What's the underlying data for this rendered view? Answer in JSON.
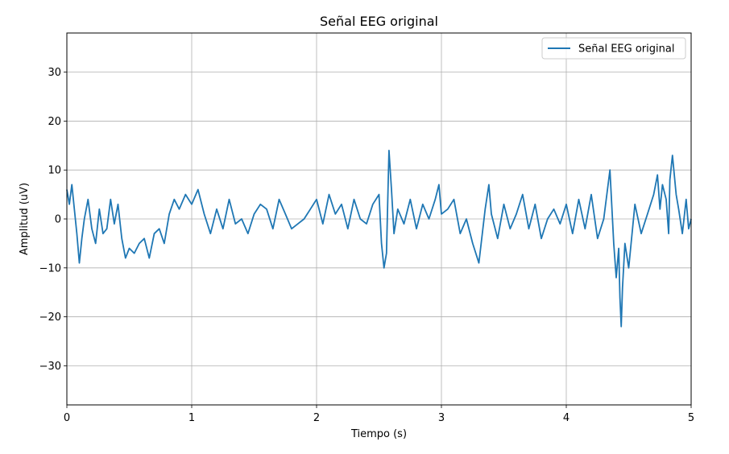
{
  "chart_data": {
    "type": "line",
    "title": "Señal EEG original",
    "xlabel": "Tiempo (s)",
    "ylabel": "Amplitud (uV)",
    "xlim": [
      0,
      5
    ],
    "ylim": [
      -38,
      38
    ],
    "xticks": [
      0,
      1,
      2,
      3,
      4,
      5
    ],
    "xtick_labels": [
      "0",
      "1",
      "2",
      "3",
      "4",
      "5"
    ],
    "yticks": [
      -30,
      -20,
      -10,
      0,
      10,
      20,
      30
    ],
    "ytick_labels": [
      "−30",
      "−20",
      "−10",
      "0",
      "10",
      "20",
      "30"
    ],
    "grid": true,
    "legend_position": "top-right",
    "series": [
      {
        "name": "Señal EEG original",
        "color": "#1f77b4",
        "x": [
          0.0,
          0.02,
          0.04,
          0.06,
          0.08,
          0.1,
          0.12,
          0.14,
          0.17,
          0.2,
          0.23,
          0.26,
          0.29,
          0.32,
          0.35,
          0.38,
          0.41,
          0.44,
          0.47,
          0.5,
          0.54,
          0.58,
          0.62,
          0.66,
          0.7,
          0.74,
          0.78,
          0.82,
          0.86,
          0.9,
          0.95,
          1.0,
          1.05,
          1.1,
          1.15,
          1.2,
          1.25,
          1.3,
          1.35,
          1.4,
          1.45,
          1.5,
          1.55,
          1.6,
          1.65,
          1.7,
          1.75,
          1.8,
          1.85,
          1.9,
          1.95,
          2.0,
          2.05,
          2.1,
          2.15,
          2.2,
          2.25,
          2.3,
          2.35,
          2.4,
          2.45,
          2.5,
          2.52,
          2.54,
          2.56,
          2.57,
          2.58,
          2.6,
          2.62,
          2.65,
          2.7,
          2.75,
          2.8,
          2.85,
          2.9,
          2.95,
          2.98,
          3.0,
          3.05,
          3.1,
          3.15,
          3.2,
          3.25,
          3.3,
          3.35,
          3.38,
          3.4,
          3.45,
          3.5,
          3.55,
          3.6,
          3.65,
          3.7,
          3.75,
          3.8,
          3.85,
          3.9,
          3.95,
          4.0,
          4.05,
          4.1,
          4.15,
          4.2,
          4.25,
          4.3,
          4.35,
          4.38,
          4.4,
          4.42,
          4.43,
          4.44,
          4.45,
          4.47,
          4.5,
          4.55,
          4.6,
          4.65,
          4.7,
          4.73,
          4.75,
          4.77,
          4.8,
          4.82,
          4.83,
          4.85,
          4.88,
          4.9,
          4.93,
          4.96,
          4.98,
          5.0
        ],
        "y": [
          6,
          3,
          7,
          2,
          -3,
          -9,
          -4,
          0,
          4,
          -2,
          -5,
          2,
          -3,
          -2,
          4,
          -1,
          3,
          -4,
          -8,
          -6,
          -7,
          -5,
          -4,
          -8,
          -3,
          -2,
          -5,
          1,
          4,
          2,
          5,
          3,
          6,
          1,
          -3,
          2,
          -2,
          4,
          -1,
          0,
          -3,
          1,
          3,
          2,
          -2,
          4,
          1,
          -2,
          -1,
          0,
          2,
          4,
          -1,
          5,
          1,
          3,
          -2,
          4,
          0,
          -1,
          3,
          5,
          -5,
          -10,
          -7,
          4,
          14,
          6,
          -3,
          2,
          -1,
          4,
          -2,
          3,
          0,
          4,
          7,
          1,
          2,
          4,
          -3,
          0,
          -5,
          -9,
          2,
          7,
          1,
          -4,
          3,
          -2,
          1,
          5,
          -2,
          3,
          -4,
          0,
          2,
          -1,
          3,
          -3,
          4,
          -2,
          5,
          -4,
          0,
          10,
          -5,
          -12,
          -6,
          -16,
          -22,
          -14,
          -5,
          -10,
          3,
          -3,
          1,
          5,
          9,
          2,
          7,
          4,
          -3,
          8,
          13,
          5,
          2,
          -3,
          4,
          -2,
          0
        ]
      }
    ]
  }
}
